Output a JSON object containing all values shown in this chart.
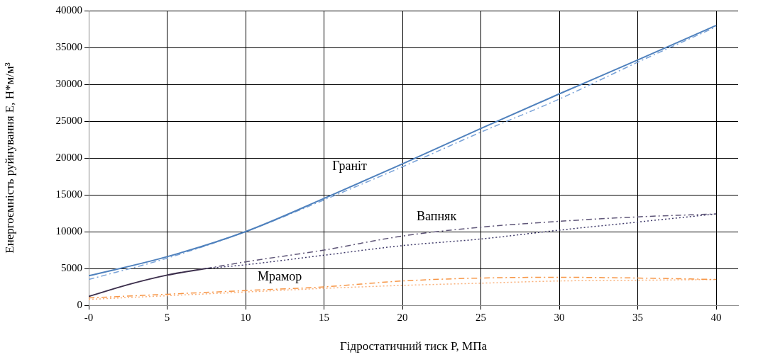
{
  "chart_data": {
    "type": "line",
    "xlabel": "Гідростатичний тиск P, МПа",
    "ylabel": "Енергоємність руйнування E, Н*м/м³",
    "xlim": [
      0,
      41.4
    ],
    "xticks": [
      {
        "value": 0,
        "label": "-0"
      },
      5,
      10,
      15,
      20,
      25,
      30,
      35,
      40
    ],
    "ylim": [
      0,
      40000
    ],
    "yticks": [
      0,
      5000,
      10000,
      15000,
      20000,
      25000,
      30000,
      35000,
      40000
    ],
    "grid": true,
    "marker": "none",
    "series": [
      {
        "color": "#4f81bd",
        "line_style": "solid",
        "x": [
          0,
          5,
          10,
          15,
          20,
          25,
          30,
          35,
          40
        ],
        "values": [
          4000,
          6600,
          10000,
          14500,
          19200,
          24000,
          28700,
          33300,
          38000
        ]
      },
      {
        "color": "#7aa3d8",
        "line_style": "dashed",
        "x": [
          0,
          5,
          10,
          15,
          20,
          25,
          30,
          35,
          40
        ],
        "values": [
          3500,
          6400,
          10000,
          14300,
          18800,
          23500,
          28000,
          33000,
          37800
        ]
      },
      {
        "color": "#3c2f4c",
        "line_style": "solid",
        "x": [
          0,
          2.5,
          5,
          7.5
        ],
        "values": [
          1200,
          2800,
          4100,
          5000
        ]
      },
      {
        "color": "#5f5678",
        "line_style": "dashed",
        "x": [
          7.5,
          10,
          15,
          20,
          25,
          30,
          35,
          40
        ],
        "values": [
          5000,
          5900,
          7500,
          9400,
          10600,
          11400,
          12000,
          12400
        ]
      },
      {
        "color": "#3f3a6a",
        "line_style": "dotted",
        "x": [
          7.5,
          10,
          15,
          20,
          25,
          30,
          35,
          40
        ],
        "values": [
          5000,
          5500,
          6800,
          8100,
          9000,
          10200,
          11300,
          12400
        ]
      },
      {
        "color": "#f79646",
        "line_style": "dashed",
        "x": [
          0,
          5,
          10,
          15,
          20,
          25,
          30,
          35,
          40
        ],
        "values": [
          1000,
          1500,
          2000,
          2500,
          3300,
          3700,
          3800,
          3700,
          3500
        ]
      },
      {
        "color": "#f9b07a",
        "line_style": "dotted",
        "x": [
          0,
          5,
          10,
          15,
          20,
          25,
          30,
          35,
          40
        ],
        "values": [
          800,
          1300,
          1800,
          2300,
          2700,
          3000,
          3300,
          3400,
          3500
        ]
      }
    ],
    "annotations": [
      "Граніт",
      "Вапняк",
      "Мрамор"
    ]
  }
}
